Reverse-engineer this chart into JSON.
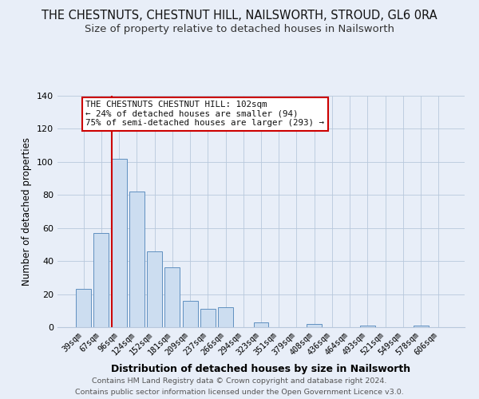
{
  "title": "THE CHESTNUTS, CHESTNUT HILL, NAILSWORTH, STROUD, GL6 0RA",
  "subtitle": "Size of property relative to detached houses in Nailsworth",
  "xlabel": "Distribution of detached houses by size in Nailsworth",
  "ylabel": "Number of detached properties",
  "bar_labels": [
    "39sqm",
    "67sqm",
    "96sqm",
    "124sqm",
    "152sqm",
    "181sqm",
    "209sqm",
    "237sqm",
    "266sqm",
    "294sqm",
    "323sqm",
    "351sqm",
    "379sqm",
    "408sqm",
    "436sqm",
    "464sqm",
    "493sqm",
    "521sqm",
    "549sqm",
    "578sqm",
    "606sqm"
  ],
  "bar_values": [
    23,
    57,
    102,
    82,
    46,
    36,
    16,
    11,
    12,
    0,
    3,
    0,
    0,
    2,
    0,
    0,
    1,
    0,
    0,
    1,
    0
  ],
  "bar_color": "#ccddf0",
  "bar_edge_color": "#6090c0",
  "ylim": [
    0,
    140
  ],
  "yticks": [
    0,
    20,
    40,
    60,
    80,
    100,
    120,
    140
  ],
  "vline_x_index": 2,
  "vline_color": "#cc0000",
  "annotation_text": "THE CHESTNUTS CHESTNUT HILL: 102sqm\n← 24% of detached houses are smaller (94)\n75% of semi-detached houses are larger (293) →",
  "annotation_box_edgecolor": "#cc0000",
  "footer_line1": "Contains HM Land Registry data © Crown copyright and database right 2024.",
  "footer_line2": "Contains public sector information licensed under the Open Government Licence v3.0.",
  "fig_background_color": "#e8eef8",
  "plot_background_color": "#e8eef8",
  "title_fontsize": 10.5,
  "subtitle_fontsize": 9.5
}
